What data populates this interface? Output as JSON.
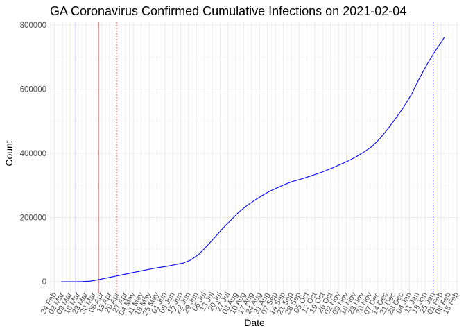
{
  "chart_data": {
    "type": "line",
    "title": "GA Coronavirus Confirmed Cumulative Infections on 2021-02-04",
    "xlabel": "Date",
    "ylabel": "Count",
    "ylim": [
      0,
      800000
    ],
    "yticks": [
      0,
      200000,
      400000,
      600000,
      800000
    ],
    "ytick_labels": [
      "0",
      "200000",
      "400000",
      "600000",
      "800000"
    ],
    "xlim": [
      "2020-02-20",
      "2021-02-17"
    ],
    "xticks": [
      "2020-02-24",
      "2020-03-02",
      "2020-03-09",
      "2020-03-16",
      "2020-03-23",
      "2020-03-30",
      "2020-04-06",
      "2020-04-13",
      "2020-04-20",
      "2020-04-27",
      "2020-05-04",
      "2020-05-11",
      "2020-05-18",
      "2020-05-25",
      "2020-06-01",
      "2020-06-08",
      "2020-06-15",
      "2020-06-22",
      "2020-06-29",
      "2020-07-06",
      "2020-07-13",
      "2020-07-20",
      "2020-07-27",
      "2020-08-03",
      "2020-08-10",
      "2020-08-17",
      "2020-08-24",
      "2020-08-31",
      "2020-09-07",
      "2020-09-14",
      "2020-09-21",
      "2020-09-28",
      "2020-10-05",
      "2020-10-12",
      "2020-10-19",
      "2020-10-26",
      "2020-11-02",
      "2020-11-09",
      "2020-11-16",
      "2020-11-23",
      "2020-11-30",
      "2020-12-07",
      "2020-12-14",
      "2020-12-21",
      "2020-12-28",
      "2021-01-04",
      "2021-01-11",
      "2021-01-18",
      "2021-01-25",
      "2021-02-01",
      "2021-02-08",
      "2021-02-15"
    ],
    "xtick_labels": [
      "24 Feb",
      "02 Mar",
      "09 Mar",
      "16 Mar",
      "23 Mar",
      "30 Mar",
      "06 Apr",
      "13 Apr",
      "20 Apr",
      "27 Apr",
      "04 May",
      "11 May",
      "18 May",
      "25 May",
      "01 Jun",
      "08 Jun",
      "15 Jun",
      "22 Jun",
      "29 Jun",
      "06 Jul",
      "13 Jul",
      "20 Jul",
      "27 Jul",
      "03 Aug",
      "10 Aug",
      "17 Aug",
      "24 Aug",
      "31 Aug",
      "07 Sep",
      "14 Sep",
      "21 Sep",
      "28 Sep",
      "05 Oct",
      "12 Oct",
      "19 Oct",
      "26 Oct",
      "02 Nov",
      "09 Nov",
      "16 Nov",
      "23 Nov",
      "30 Nov",
      "07 Dec",
      "14 Dec",
      "21 Dec",
      "28 Dec",
      "04 Jan",
      "11 Jan",
      "18 Jan",
      "25 Jan",
      "01 Feb",
      "08 Feb",
      "15 Feb"
    ],
    "grid": true,
    "series": [
      {
        "color": "#0000ff",
        "points": [
          [
            "2020-03-01",
            0
          ],
          [
            "2020-03-10",
            100
          ],
          [
            "2020-03-20",
            400
          ],
          [
            "2020-03-26",
            1500
          ],
          [
            "2020-04-01",
            4700
          ],
          [
            "2020-04-08",
            10000
          ],
          [
            "2020-04-15",
            15000
          ],
          [
            "2020-04-22",
            20000
          ],
          [
            "2020-04-29",
            25000
          ],
          [
            "2020-05-06",
            30000
          ],
          [
            "2020-05-13",
            35000
          ],
          [
            "2020-05-20",
            40000
          ],
          [
            "2020-05-27",
            44000
          ],
          [
            "2020-06-03",
            48000
          ],
          [
            "2020-06-10",
            53000
          ],
          [
            "2020-06-17",
            58000
          ],
          [
            "2020-06-24",
            68000
          ],
          [
            "2020-07-01",
            85000
          ],
          [
            "2020-07-08",
            110000
          ],
          [
            "2020-07-15",
            137000
          ],
          [
            "2020-07-22",
            165000
          ],
          [
            "2020-07-29",
            190000
          ],
          [
            "2020-08-05",
            215000
          ],
          [
            "2020-08-12",
            235000
          ],
          [
            "2020-08-19",
            252000
          ],
          [
            "2020-08-26",
            268000
          ],
          [
            "2020-09-02",
            282000
          ],
          [
            "2020-09-09",
            293000
          ],
          [
            "2020-09-16",
            304000
          ],
          [
            "2020-09-23",
            313000
          ],
          [
            "2020-09-30",
            320000
          ],
          [
            "2020-10-07",
            328000
          ],
          [
            "2020-10-14",
            336000
          ],
          [
            "2020-10-21",
            345000
          ],
          [
            "2020-10-28",
            355000
          ],
          [
            "2020-11-04",
            366000
          ],
          [
            "2020-11-11",
            377000
          ],
          [
            "2020-11-18",
            390000
          ],
          [
            "2020-11-25",
            405000
          ],
          [
            "2020-12-02",
            422000
          ],
          [
            "2020-12-09",
            447000
          ],
          [
            "2020-12-16",
            477000
          ],
          [
            "2020-12-23",
            510000
          ],
          [
            "2020-12-30",
            545000
          ],
          [
            "2021-01-06",
            585000
          ],
          [
            "2021-01-13",
            635000
          ],
          [
            "2021-01-20",
            680000
          ],
          [
            "2021-01-27",
            720000
          ],
          [
            "2021-02-01",
            745000
          ],
          [
            "2021-02-04",
            762000
          ]
        ]
      }
    ],
    "vlines": [
      {
        "x": "2020-03-14",
        "color": "#0000ff",
        "style": "solid"
      },
      {
        "x": "2020-04-03",
        "color": "#cc0000",
        "style": "solid"
      },
      {
        "x": "2020-04-19",
        "color": "#cc0000",
        "style": "dotted"
      },
      {
        "x": "2020-05-01",
        "color": "#ffaaaa",
        "style": "solid"
      },
      {
        "x": "2021-01-25",
        "color": "#0000ff",
        "style": "dotted"
      }
    ]
  }
}
